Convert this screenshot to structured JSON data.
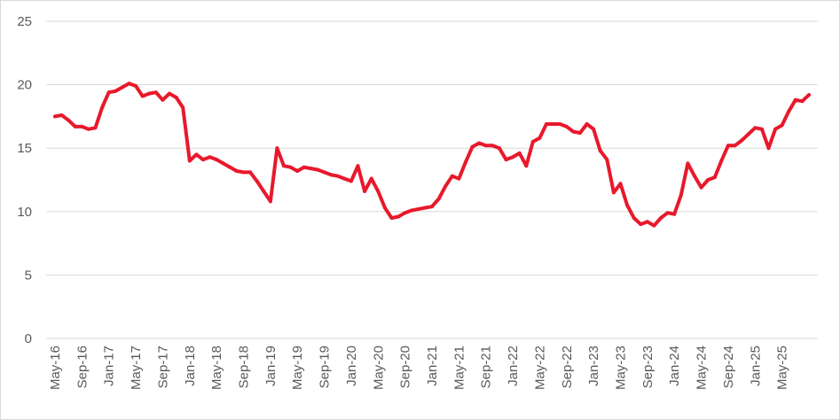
{
  "chart_data": {
    "type": "line",
    "title": "",
    "xlabel": "",
    "ylabel": "",
    "ylim": [
      0,
      25
    ],
    "y_ticks": [
      "0",
      "5",
      "10",
      "15",
      "20",
      "25"
    ],
    "x_tick_labels": [
      "May-16",
      "Sep-16",
      "Jan-17",
      "May-17",
      "Sep-17",
      "Jan-18",
      "May-18",
      "Sep-18",
      "Jan-19",
      "May-19",
      "Sep-19",
      "Jan-20",
      "May-20",
      "Sep-20",
      "Jan-21",
      "May-21",
      "Sep-21",
      "Jan-22",
      "May-22",
      "Sep-22",
      "Jan-23",
      "May-23",
      "Sep-23",
      "Jan-24",
      "May-24",
      "Sep-24",
      "Jan-25",
      "May-25"
    ],
    "grid": true,
    "legend": "none",
    "colors": {
      "series": "#e8192c",
      "grid": "#d9d9d9",
      "tick_text": "#595959"
    },
    "series": [
      {
        "x_start": "May-16",
        "frequency": "monthly",
        "values": [
          17.5,
          17.6,
          17.2,
          16.7,
          16.7,
          16.5,
          16.6,
          18.2,
          19.4,
          19.5,
          19.8,
          20.1,
          19.9,
          19.1,
          19.3,
          19.4,
          18.8,
          19.3,
          19.0,
          18.2,
          14.0,
          14.5,
          14.1,
          14.3,
          14.1,
          13.8,
          13.5,
          13.2,
          13.1,
          13.1,
          12.4,
          11.6,
          10.8,
          15.0,
          13.6,
          13.5,
          13.2,
          13.5,
          13.4,
          13.3,
          13.1,
          12.9,
          12.8,
          12.6,
          12.4,
          13.6,
          11.6,
          12.6,
          11.6,
          10.3,
          9.5,
          9.6,
          9.9,
          10.1,
          10.2,
          10.3,
          10.4,
          11.0,
          12.0,
          12.8,
          12.6,
          13.9,
          15.1,
          15.4,
          15.2,
          15.2,
          15.0,
          14.1,
          14.3,
          14.6,
          13.6,
          15.5,
          15.8,
          16.9,
          16.9,
          16.9,
          16.7,
          16.3,
          16.2,
          16.9,
          16.5,
          14.8,
          14.1,
          11.5,
          12.2,
          10.5,
          9.5,
          9.0,
          9.2,
          8.9,
          9.5,
          9.9,
          9.8,
          11.3,
          13.8,
          12.8,
          11.9,
          12.5,
          12.7,
          14.0,
          15.2,
          15.2,
          15.6,
          16.1,
          16.6,
          16.5,
          15.0,
          16.5,
          16.8,
          17.9,
          18.8,
          18.7,
          19.2
        ]
      }
    ]
  }
}
